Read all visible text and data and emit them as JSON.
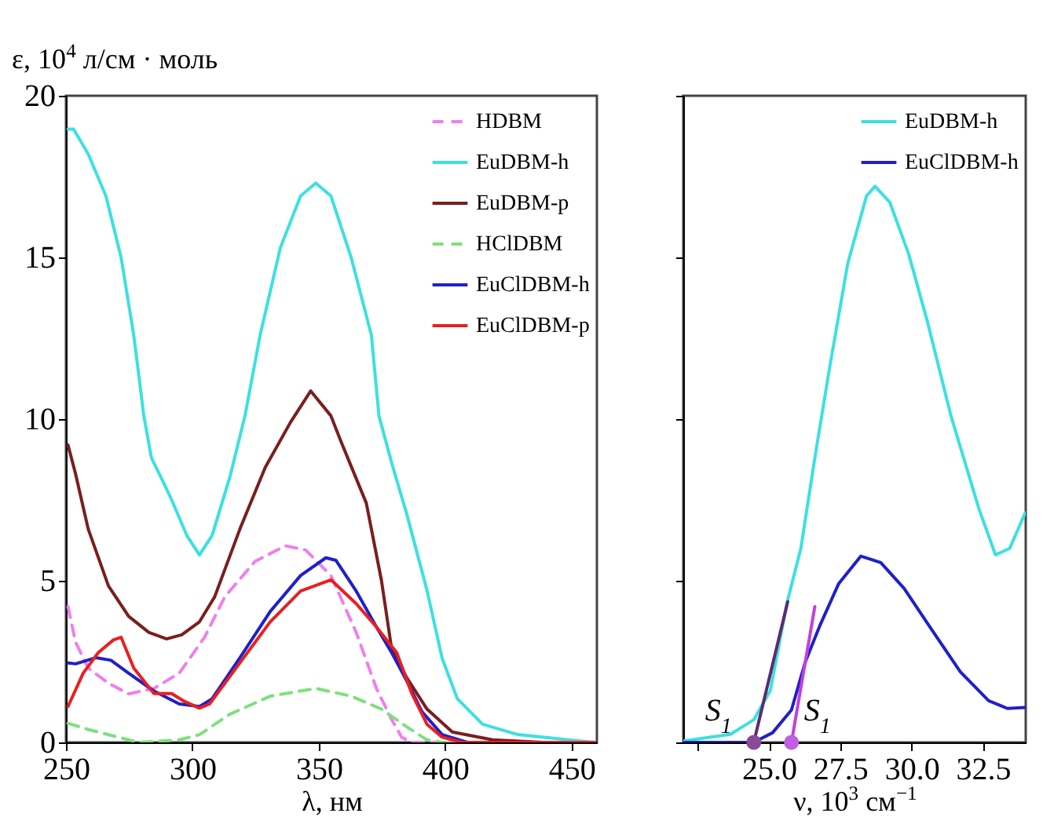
{
  "chart_data": [
    {
      "type": "line",
      "ylabel": "ε, 10$^{4}$ л/см · моль",
      "xlabel": "λ, нм",
      "xlim": [
        250,
        460
      ],
      "xticks": [
        250,
        300,
        350,
        400,
        450
      ],
      "ylim": [
        0,
        20
      ],
      "yticks": [
        0,
        5,
        10,
        15,
        20
      ],
      "legend": "top right",
      "series": [
        {
          "name": "HDBM",
          "color": "#f07ef0",
          "line_style": "dashed",
          "x": [
            250.8,
            253.8,
            258.8,
            266.8,
            274.8,
            284.8,
            294.8,
            304.8,
            312.8,
            324.8,
            336.8,
            344.8,
            354.8,
            364.8,
            372.8,
            378.8,
            382.8,
            386.8,
            458.8
          ],
          "values": [
            4.2,
            3.1,
            2.3,
            1.83,
            1.5,
            1.67,
            2.14,
            3.25,
            4.5,
            5.6,
            6.08,
            5.95,
            5.16,
            3.4,
            1.67,
            0.71,
            0.16,
            0,
            0
          ]
        },
        {
          "name": "EuDBM-h",
          "color": "#3de0e0",
          "x": [
            250.8,
            253,
            258.8,
            265.8,
            271.8,
            276.8,
            280.8,
            283.8,
            288.8,
            291.8,
            297.8,
            302.8,
            307.8,
            314.8,
            320.8,
            326.8,
            334.8,
            342.8,
            348.8,
            354.8,
            362.8,
            370.8,
            373.8,
            378.8,
            384.8,
            392.8,
            398.8,
            404.8,
            414.8,
            428.8,
            448.8,
            458.8
          ],
          "values": [
            18.97,
            18.97,
            18.2,
            16.9,
            15.0,
            12.6,
            10.1,
            8.8,
            8.0,
            7.5,
            6.4,
            5.8,
            6.4,
            8.2,
            10.1,
            12.6,
            15.3,
            16.9,
            17.3,
            16.9,
            15.0,
            12.6,
            10.1,
            8.65,
            7.06,
            4.7,
            2.6,
            1.35,
            0.56,
            0.24,
            0.08,
            0
          ]
        },
        {
          "name": "EuDBM-p",
          "color": "#7a1e1e",
          "x": [
            250.8,
            253.8,
            258.8,
            266.8,
            274.8,
            282.8,
            289.8,
            295.8,
            302.8,
            308.8,
            318.8,
            328.8,
            338.8,
            346.8,
            354.8,
            358.8,
            368.8,
            374.8,
            378.8,
            384.8,
            392.8,
            402.8,
            418.8,
            438.8,
            458.8
          ],
          "values": [
            9.2,
            8.3,
            6.6,
            4.84,
            3.9,
            3.4,
            3.2,
            3.33,
            3.73,
            4.5,
            6.6,
            8.5,
            9.9,
            10.87,
            10.1,
            9.3,
            7.4,
            5.0,
            2.9,
            2.0,
            1.03,
            0.32,
            0.08,
            0,
            0
          ]
        },
        {
          "name": "HClDBM",
          "color": "#7ee07e",
          "line_style": "dashed",
          "x": [
            250.8,
            258.8,
            270.8,
            278.8,
            294.8,
            302.8,
            314.8,
            330.8,
            348.8,
            362.8,
            374.8,
            384.8,
            392.8,
            398.8,
            458.8
          ],
          "values": [
            0.59,
            0.4,
            0.16,
            0,
            0.08,
            0.24,
            0.87,
            1.43,
            1.67,
            1.43,
            1.03,
            0.48,
            0.08,
            0,
            0
          ]
        },
        {
          "name": "EuClDBM-h",
          "color": "#2020c8",
          "x": [
            250.8,
            253.8,
            261.8,
            267.8,
            274.8,
            284.8,
            294.8,
            302.8,
            307.8,
            318.8,
            330.8,
            342.8,
            352.8,
            356.8,
            364.8,
            372.8,
            378.8,
            384.8,
            390.8,
            398.8,
            408.8,
            458.8
          ],
          "values": [
            2.46,
            2.43,
            2.62,
            2.54,
            2.14,
            1.59,
            1.19,
            1.11,
            1.35,
            2.62,
            4.05,
            5.16,
            5.71,
            5.63,
            4.68,
            3.57,
            2.78,
            1.9,
            0.95,
            0.24,
            0,
            0
          ]
        },
        {
          "name": "EuClDBM-p",
          "color": "#e82020",
          "x": [
            250.8,
            256.8,
            262.8,
            268.8,
            271.8,
            276.8,
            284.8,
            291.8,
            296.8,
            302.8,
            306.8,
            318.8,
            330.8,
            342.8,
            354.8,
            364.8,
            372.8,
            380.8,
            386.8,
            392.8,
            398.8,
            406.8,
            458.8
          ],
          "values": [
            1.11,
            2.14,
            2.78,
            3.17,
            3.25,
            2.3,
            1.51,
            1.51,
            1.27,
            1.06,
            1.19,
            2.46,
            3.73,
            4.68,
            5.03,
            4.29,
            3.57,
            2.78,
            1.51,
            0.56,
            0.16,
            0,
            0
          ]
        }
      ]
    },
    {
      "type": "line",
      "xlabel": "ν, 10$^{3}$ см$^{−1}$",
      "xlim": [
        22,
        34
      ],
      "xticks": [
        {
          "value": 22.5,
          "label": null
        },
        {
          "value": 25,
          "label": "25.0"
        },
        {
          "value": 27.5,
          "label": "27.5"
        },
        {
          "value": 30,
          "label": "30.0"
        },
        {
          "value": 32.5,
          "label": "32.5"
        }
      ],
      "ylim": [
        0,
        20
      ],
      "yticks": [
        0,
        5,
        10,
        15,
        20
      ],
      "tick_labels": "x",
      "legend": "top right",
      "annotations": [
        {
          "text": "S$_{1}$",
          "x": 24.47,
          "y": 0
        },
        {
          "text": "S$_{1}$",
          "x": 25.79,
          "y": 0
        }
      ],
      "series": [
        {
          "name": "EuDBM-h",
          "color": "#3de0e0",
          "x": [
            22.04,
            23.65,
            24.47,
            25.05,
            25.63,
            26.12,
            26.61,
            27.11,
            27.76,
            28.42,
            28.72,
            29.24,
            29.9,
            30.56,
            31.38,
            32.37,
            32.94,
            33.44,
            33.98
          ],
          "values": [
            0.05,
            0.25,
            0.7,
            1.6,
            4.3,
            6.0,
            8.8,
            11.5,
            14.8,
            16.9,
            17.2,
            16.7,
            15.1,
            13.0,
            10.1,
            7.2,
            5.8,
            6.0,
            7.1
          ]
        },
        {
          "name": "EuClDBM-h",
          "color": "#2020c8",
          "x": [
            22.04,
            24.47,
            25.13,
            25.79,
            26.28,
            26.78,
            27.44,
            28.22,
            28.92,
            29.74,
            30.72,
            31.71,
            32.7,
            33.36,
            33.98
          ],
          "values": [
            0,
            0,
            0.3,
            1.0,
            2.5,
            3.6,
            4.9,
            5.76,
            5.56,
            4.76,
            3.47,
            2.18,
            1.29,
            1.05,
            1.08
          ]
        },
        {
          "type": "line",
          "color": "#5b2c6f",
          "x": [
            24.47,
            25.66
          ],
          "values": [
            0,
            4.35
          ]
        },
        {
          "type": "line",
          "color": "#c040e0",
          "x": [
            25.79,
            26.61
          ],
          "values": [
            0,
            4.2
          ]
        },
        {
          "type": "scatter",
          "marker": "circle",
          "colors": [
            "#8a4a9a",
            "#c060e0"
          ],
          "x": [
            24.47,
            25.79
          ],
          "values": [
            0,
            0
          ]
        }
      ]
    }
  ]
}
